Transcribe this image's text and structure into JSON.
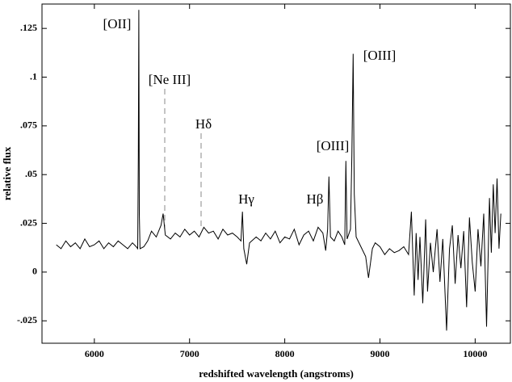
{
  "chart_data": {
    "type": "line",
    "x_label": "redshifted wavelength (angstroms)",
    "y_label": "relative flux",
    "annotations": [
      "[OII]",
      "[Ne III]",
      "Hδ",
      "Hγ",
      "Hβ",
      "[OIII]",
      "[OIII]"
    ],
    "color": "#000000",
    "xlim": [
      5450,
      10370
    ],
    "ylim": [
      -0.0365,
      0.1375
    ],
    "xticks": [
      6000,
      7000,
      8000,
      9000,
      10000
    ],
    "yticks": [
      {
        "value": 0.125,
        "label": ".125"
      },
      {
        "value": 0.1,
        "label": ".1"
      },
      {
        "value": 0.075,
        "label": ".075"
      },
      {
        "value": 0.05,
        "label": ".05"
      },
      {
        "value": 0.025,
        "label": ".025"
      },
      0,
      {
        "value": -0.025,
        "label": "-.025"
      }
    ],
    "x": [
      5600,
      5650,
      5700,
      5750,
      5800,
      5850,
      5900,
      5950,
      6000,
      6050,
      6100,
      6150,
      6200,
      6250,
      6300,
      6350,
      6400,
      6440,
      6455,
      6462,
      6467,
      6472,
      6480,
      6520,
      6560,
      6600,
      6650,
      6700,
      6722,
      6745,
      6800,
      6850,
      6900,
      6950,
      7000,
      7050,
      7100,
      7150,
      7200,
      7250,
      7300,
      7350,
      7400,
      7450,
      7500,
      7540,
      7555,
      7570,
      7600,
      7630,
      7700,
      7750,
      7800,
      7850,
      7900,
      7950,
      8000,
      8050,
      8100,
      8150,
      8200,
      8250,
      8300,
      8350,
      8400,
      8430,
      8450,
      8464,
      8480,
      8520,
      8560,
      8600,
      8630,
      8642,
      8655,
      8690,
      8705,
      8718,
      8730,
      8750,
      8800,
      8850,
      8880,
      8920,
      8950,
      9000,
      9050,
      9100,
      9150,
      9200,
      9250,
      9300,
      9330,
      9360,
      9380,
      9400,
      9420,
      9450,
      9480,
      9500,
      9530,
      9560,
      9600,
      9630,
      9660,
      9700,
      9730,
      9760,
      9790,
      9820,
      9850,
      9880,
      9910,
      9940,
      9970,
      10000,
      10030,
      10060,
      10090,
      10120,
      10150,
      10170,
      10190,
      10210,
      10230,
      10250,
      10270
    ],
    "values": [
      0.014,
      0.012,
      0.016,
      0.013,
      0.015,
      0.012,
      0.017,
      0.013,
      0.014,
      0.016,
      0.012,
      0.015,
      0.013,
      0.016,
      0.014,
      0.012,
      0.015,
      0.013,
      0.012,
      0.06,
      0.1345,
      0.03,
      0.012,
      0.013,
      0.016,
      0.021,
      0.018,
      0.024,
      0.03,
      0.019,
      0.017,
      0.02,
      0.018,
      0.022,
      0.019,
      0.021,
      0.018,
      0.023,
      0.02,
      0.021,
      0.017,
      0.022,
      0.019,
      0.02,
      0.018,
      0.016,
      0.031,
      0.012,
      0.004,
      0.015,
      0.018,
      0.016,
      0.02,
      0.017,
      0.021,
      0.015,
      0.018,
      0.017,
      0.022,
      0.014,
      0.019,
      0.021,
      0.016,
      0.023,
      0.02,
      0.011,
      0.022,
      0.049,
      0.018,
      0.016,
      0.021,
      0.018,
      0.014,
      0.057,
      0.017,
      0.022,
      0.06,
      0.112,
      0.04,
      0.018,
      0.013,
      0.008,
      -0.003,
      0.012,
      0.015,
      0.013,
      0.009,
      0.012,
      0.01,
      0.011,
      0.013,
      0.009,
      0.031,
      -0.012,
      0.02,
      -0.004,
      0.018,
      -0.016,
      0.027,
      -0.01,
      0.015,
      0,
      0.022,
      -0.005,
      0.017,
      -0.03,
      0.012,
      0.024,
      -0.006,
      0.019,
      0.002,
      0.021,
      -0.018,
      0.028,
      0.005,
      -0.01,
      0.022,
      0.003,
      0.03,
      -0.028,
      0.038,
      0.01,
      0.045,
      0.02,
      0.048,
      0.012,
      0.03
    ]
  }
}
